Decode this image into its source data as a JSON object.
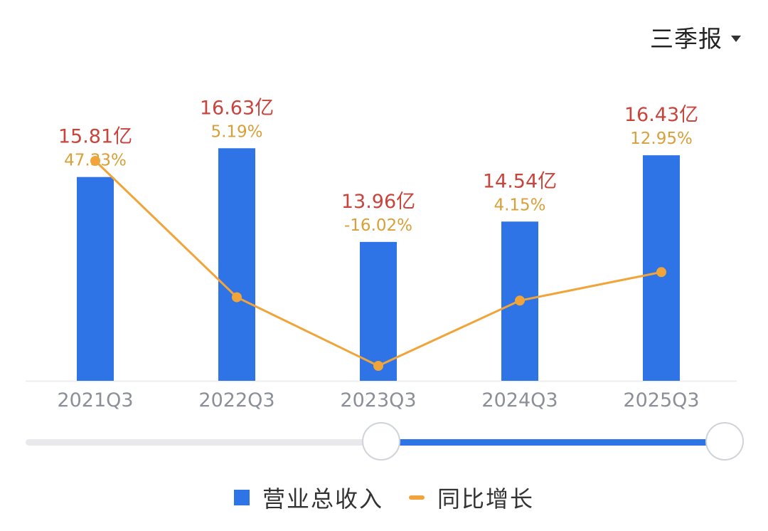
{
  "period_selector": {
    "label": "三季报",
    "icon": "caret-down-icon"
  },
  "colors": {
    "bar": "#2f74e6",
    "line": "#f0a43a",
    "value_label": "#c9443c",
    "growth_label": "#d9a03a",
    "axis_text": "#8a8f98",
    "axis_line": "#eeeeee"
  },
  "chart_data": {
    "type": "bar",
    "categories": [
      "2021Q3",
      "2022Q3",
      "2023Q3",
      "2024Q3",
      "2025Q3"
    ],
    "series": [
      {
        "name": "营业总收入",
        "type": "bar",
        "values": [
          15.81,
          16.63,
          13.96,
          14.54,
          16.43
        ],
        "labels": [
          "15.81亿",
          "16.63亿",
          "13.96亿",
          "14.54亿",
          "16.43亿"
        ],
        "unit": "亿"
      },
      {
        "name": "同比增长",
        "type": "line",
        "values": [
          47.33,
          5.19,
          -16.02,
          4.15,
          12.95
        ],
        "labels": [
          "47.33%",
          "5.19%",
          "-16.02%",
          "4.15%",
          "12.95%"
        ],
        "unit": "%"
      }
    ],
    "grid": false,
    "legend_position": "bottom"
  },
  "legend": {
    "items": [
      {
        "label": "营业总收入"
      },
      {
        "label": "同比增长"
      }
    ]
  },
  "slider": {
    "start": 0.5,
    "end": 1.0
  }
}
